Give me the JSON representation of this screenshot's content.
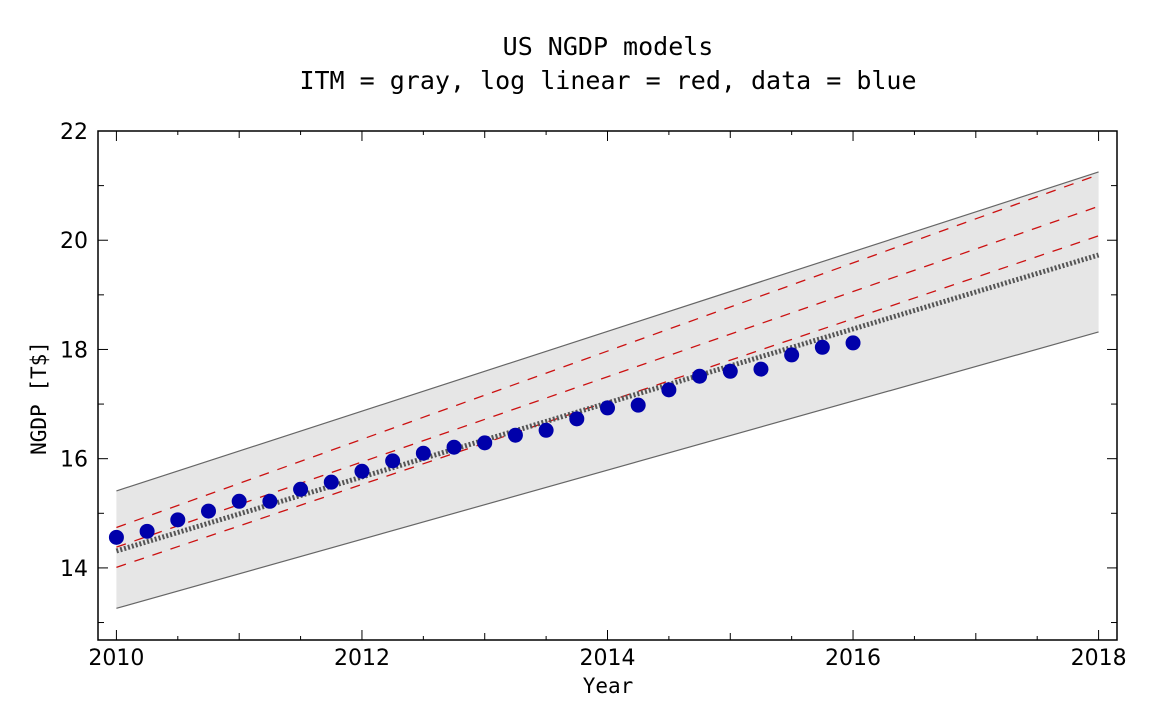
{
  "chart_data": {
    "type": "scatter",
    "title": "US NGDP models",
    "subtitle": "ITM = gray, log linear = red, data = blue",
    "xlabel": "Year",
    "ylabel": "NGDP [T$]",
    "xlim": [
      2009.85,
      2018.15
    ],
    "ylim": [
      12.68,
      22
    ],
    "xticks": [
      2010,
      2012,
      2014,
      2016,
      2018
    ],
    "yticks": [
      14,
      16,
      18,
      20,
      22
    ],
    "colors": {
      "band": "#e6e6e6",
      "band_edge": "#666666",
      "itm": "#555555",
      "loglinear": "#cc1111",
      "data": "#0000aa"
    },
    "itm_band": {
      "x": [
        2010,
        2018
      ],
      "upper": [
        15.41,
        21.25
      ],
      "lower": [
        13.26,
        18.32
      ],
      "center": [
        14.31,
        19.73
      ]
    },
    "log_linear": [
      {
        "name": "upper",
        "x": [
          2010,
          2018
        ],
        "y": [
          14.74,
          21.2
        ]
      },
      {
        "name": "middle",
        "x": [
          2010,
          2018
        ],
        "y": [
          14.38,
          20.62
        ]
      },
      {
        "name": "lower",
        "x": [
          2010,
          2018
        ],
        "y": [
          14.01,
          20.08
        ]
      }
    ],
    "data": {
      "x": [
        2010,
        2010.25,
        2010.5,
        2010.75,
        2011,
        2011.25,
        2011.5,
        2011.75,
        2012,
        2012.25,
        2012.5,
        2012.75,
        2013,
        2013.25,
        2013.5,
        2013.75,
        2014,
        2014.25,
        2014.5,
        2014.75,
        2015,
        2015.25,
        2015.5,
        2015.75,
        2016
      ],
      "y": [
        14.56,
        14.67,
        14.88,
        15.04,
        15.22,
        15.22,
        15.44,
        15.57,
        15.77,
        15.96,
        16.1,
        16.21,
        16.29,
        16.43,
        16.52,
        16.73,
        16.93,
        16.98,
        17.26,
        17.51,
        17.6,
        17.64,
        17.9,
        18.04,
        18.12
      ]
    }
  }
}
